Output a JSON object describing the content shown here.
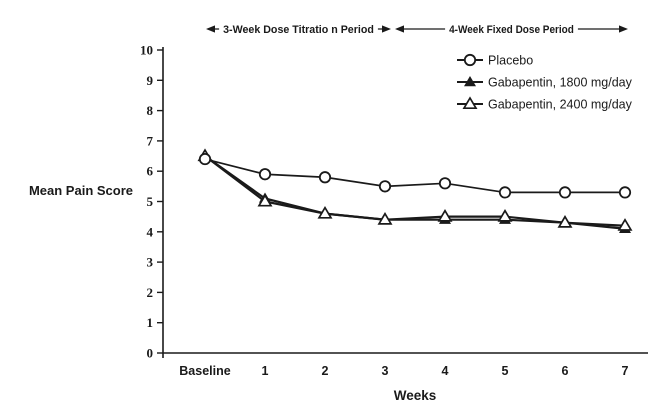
{
  "figure": {
    "background": "#ffffff",
    "ink": "#1a1a1a"
  },
  "chart_data": {
    "type": "line",
    "title": "",
    "x_categories": [
      "Baseline",
      "1",
      "2",
      "3",
      "4",
      "5",
      "6",
      "7"
    ],
    "xlabel": "Weeks",
    "ylabel": "Mean Pain Score",
    "ylim": [
      0,
      10
    ],
    "ytick_interval": 1,
    "grid": false,
    "legend_position": "top-right-inside",
    "series": [
      {
        "name": "Placebo",
        "marker": "circle-open",
        "color": "#1a1a1a",
        "values": [
          6.4,
          5.9,
          5.8,
          5.5,
          5.6,
          5.3,
          5.3,
          5.3
        ]
      },
      {
        "name": "Gabapentin, 1800 mg/day",
        "marker": "triangle-filled",
        "color": "#1a1a1a",
        "values": [
          6.5,
          5.1,
          4.6,
          4.4,
          4.4,
          4.4,
          4.3,
          4.1
        ]
      },
      {
        "name": "Gabapentin, 2400 mg/day",
        "marker": "triangle-open",
        "color": "#1a1a1a",
        "values": [
          6.5,
          5.0,
          4.6,
          4.4,
          4.5,
          4.5,
          4.3,
          4.2
        ]
      }
    ],
    "period_annotations": [
      {
        "label": "3-Week Dose Titratio n Period",
        "from_category": "Baseline",
        "to_category": "3",
        "arrow": "double-headed"
      },
      {
        "label": "4-Week Fixed Dose Period",
        "from_category": "3",
        "to_category": "7",
        "arrow": "double-headed"
      }
    ]
  }
}
